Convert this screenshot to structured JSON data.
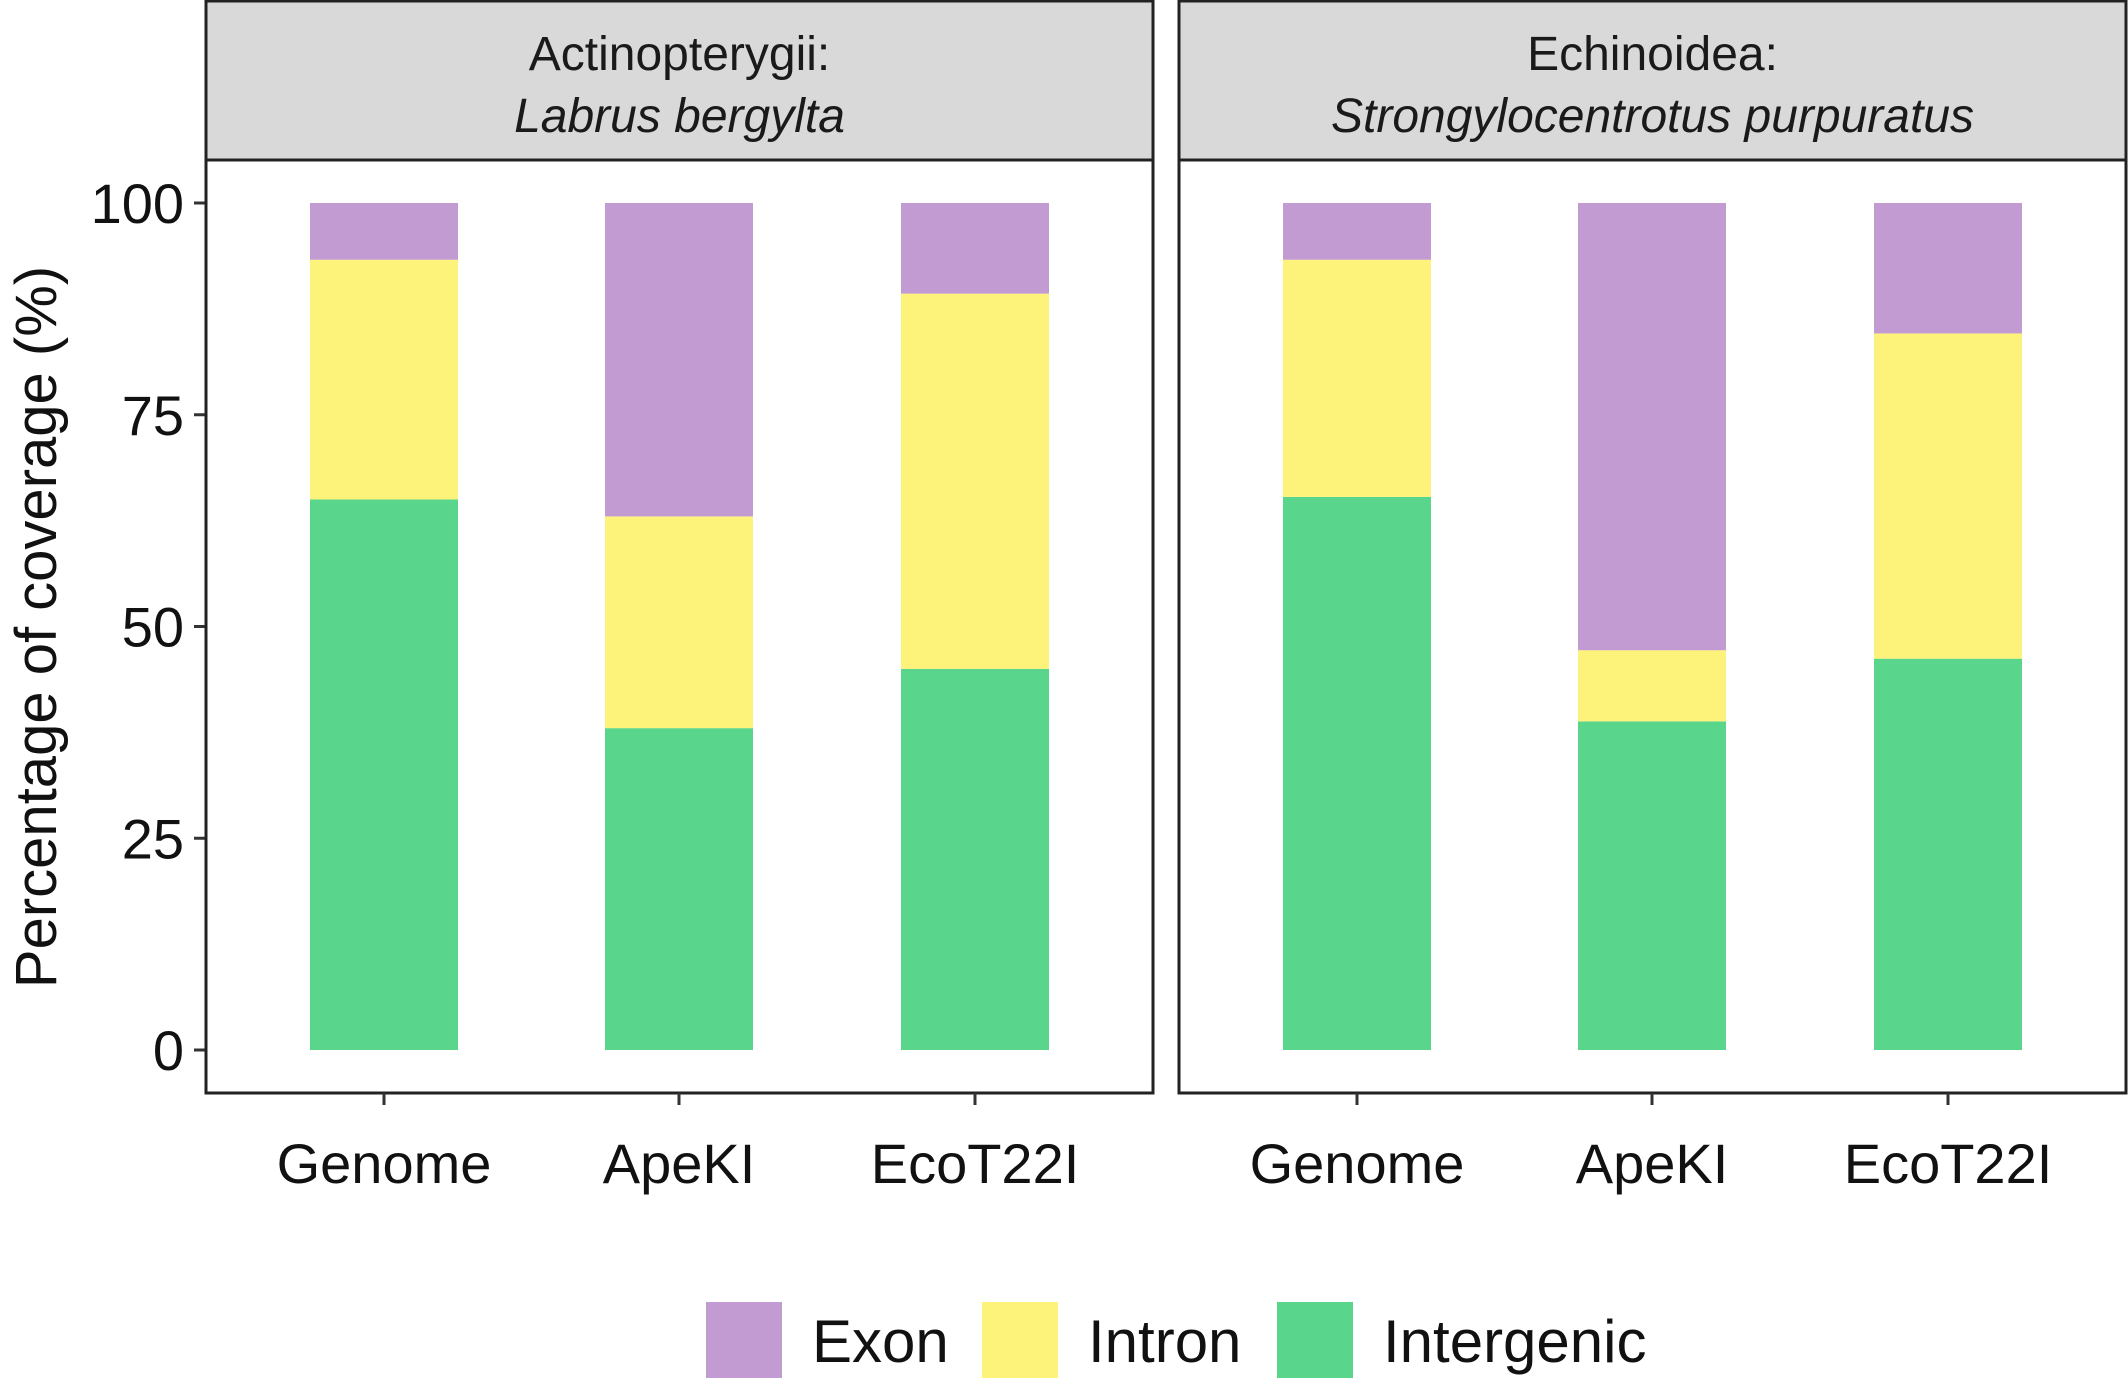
{
  "chart_data": {
    "type": "bar",
    "stacked": true,
    "ylabel": "Percentage of coverage (%)",
    "ylim": [
      0,
      100
    ],
    "yticks": [
      0,
      25,
      50,
      75,
      100
    ],
    "grid": false,
    "legend_position": "bottom",
    "categories": [
      "Genome",
      "ApeKI",
      "EcoT22I"
    ],
    "series_names": [
      "Exon",
      "Intron",
      "Intergenic"
    ],
    "colors": {
      "Exon": "#c29bd3",
      "Intron": "#fdf27a",
      "Intergenic": "#59d68c"
    },
    "panels": [
      {
        "strip_line1": "Actinopterygii:",
        "strip_line2": "Labrus bergylta",
        "series": [
          {
            "name": "Intergenic",
            "values": [
              65.0,
              38.0,
              45.0
            ]
          },
          {
            "name": "Intron",
            "values": [
              28.3,
              25.0,
              44.3
            ]
          },
          {
            "name": "Exon",
            "values": [
              6.7,
              37.0,
              10.7
            ]
          }
        ]
      },
      {
        "strip_line1": "Echinoidea:",
        "strip_line2": "Strongylocentrotus purpuratus",
        "series": [
          {
            "name": "Intergenic",
            "values": [
              65.3,
              38.8,
              46.2
            ]
          },
          {
            "name": "Intron",
            "values": [
              28.0,
              8.4,
              38.4
            ]
          },
          {
            "name": "Exon",
            "values": [
              6.7,
              52.8,
              15.4
            ]
          }
        ]
      }
    ]
  }
}
